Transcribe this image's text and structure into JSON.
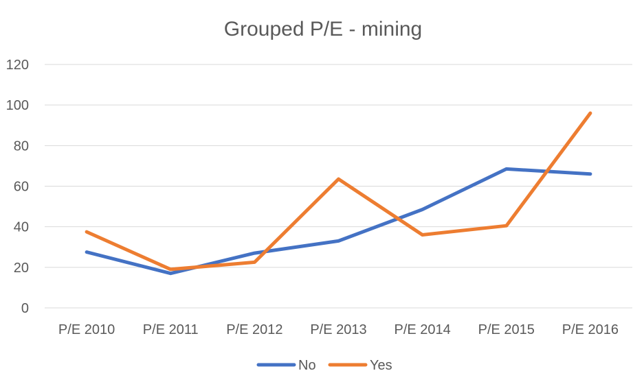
{
  "chart_data": {
    "type": "line",
    "title": "Grouped P/E - mining",
    "xlabel": "",
    "ylabel": "",
    "categories": [
      "P/E 2010",
      "P/E 2011",
      "P/E 2012",
      "P/E 2013",
      "P/E 2014",
      "P/E 2015",
      "P/E 2016"
    ],
    "ylim": [
      0,
      120
    ],
    "yticks": [
      "0",
      "20",
      "40",
      "60",
      "80",
      "100",
      "120"
    ],
    "grid": true,
    "legend_position": "bottom",
    "series": [
      {
        "name": "No",
        "color": "#4472C4",
        "values": [
          27.5,
          17,
          27,
          33,
          48.5,
          68.5,
          66
        ]
      },
      {
        "name": "Yes",
        "color": "#ED7D31",
        "values": [
          37.5,
          19,
          22.5,
          63.5,
          36,
          40.5,
          96
        ]
      }
    ]
  }
}
